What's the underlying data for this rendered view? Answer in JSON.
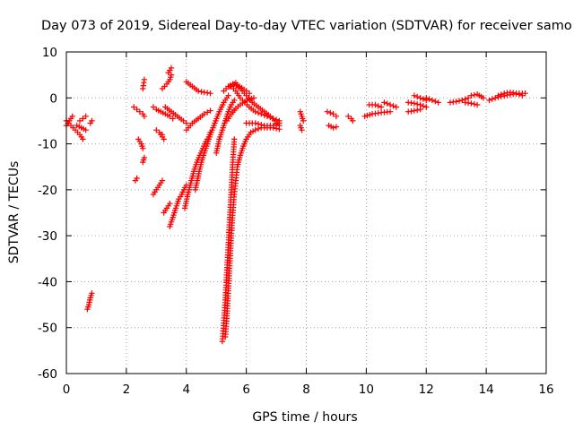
{
  "chart_data": {
    "type": "scatter",
    "title": "Day 073 of 2019, Sidereal Day-to-day VTEC variation (SDTVAR) for receiver samo",
    "xlabel": "GPS time / hours",
    "ylabel": "SDTVAR / TECUs",
    "xlim": [
      0,
      16
    ],
    "ylim": [
      -60,
      10
    ],
    "xticks": [
      "0",
      "2",
      "4",
      "6",
      "8",
      "10",
      "12",
      "14",
      "16"
    ],
    "yticks": [
      "10",
      "0",
      "-10",
      "-20",
      "-30",
      "-40",
      "-50",
      "-60"
    ],
    "grid": true,
    "marker": "+",
    "color": "#ff0000",
    "segments": [
      {
        "x": [
          0.0,
          0.15,
          0.3,
          0.45,
          0.55
        ],
        "y": [
          -5,
          -6,
          -7,
          -8,
          -9
        ]
      },
      {
        "x": [
          0.0,
          0.1,
          0.2
        ],
        "y": [
          -6,
          -5,
          -4
        ]
      },
      {
        "x": [
          0.35,
          0.5,
          0.65
        ],
        "y": [
          -6,
          -6.5,
          -7
        ]
      },
      {
        "x": [
          0.45,
          0.55,
          0.65
        ],
        "y": [
          -5,
          -4.5,
          -4
        ]
      },
      {
        "x": [
          0.8,
          0.85
        ],
        "y": [
          -5.5,
          -5
        ]
      },
      {
        "x": [
          0.7,
          0.75,
          0.8,
          0.85
        ],
        "y": [
          -46,
          -45,
          -43.5,
          -42.5
        ]
      },
      {
        "x": [
          2.25,
          2.35
        ],
        "y": [
          -2,
          -2.5
        ]
      },
      {
        "x": [
          2.45,
          2.55,
          2.6
        ],
        "y": [
          -3,
          -3.5,
          -4
        ]
      },
      {
        "x": [
          2.55,
          2.6
        ],
        "y": [
          2,
          4
        ]
      },
      {
        "x": [
          2.4,
          2.5,
          2.55
        ],
        "y": [
          -9,
          -10,
          -11
        ]
      },
      {
        "x": [
          2.55,
          2.6
        ],
        "y": [
          -14,
          -13
        ]
      },
      {
        "x": [
          2.3,
          2.35
        ],
        "y": [
          -18,
          -17.5
        ]
      },
      {
        "x": [
          3.2,
          3.35,
          3.45,
          3.5
        ],
        "y": [
          2,
          3,
          4,
          5
        ]
      },
      {
        "x": [
          3.4,
          3.45,
          3.5
        ],
        "y": [
          5.5,
          6,
          6.5
        ]
      },
      {
        "x": [
          2.9,
          3.0,
          3.15,
          3.3,
          3.45,
          3.55
        ],
        "y": [
          -2,
          -2.5,
          -3,
          -3.5,
          -4,
          -4.5
        ]
      },
      {
        "x": [
          3.3,
          3.5,
          3.7,
          3.9,
          4.0
        ],
        "y": [
          -2,
          -3,
          -4,
          -5,
          -5.5
        ]
      },
      {
        "x": [
          3.15,
          3.25
        ],
        "y": [
          -8,
          -9
        ]
      },
      {
        "x": [
          3.0,
          3.1,
          3.2
        ],
        "y": [
          -7,
          -7.5,
          -8
        ]
      },
      {
        "x": [
          2.9,
          3.0,
          3.1,
          3.2
        ],
        "y": [
          -21,
          -20,
          -19,
          -18
        ]
      },
      {
        "x": [
          3.25,
          3.35,
          3.45
        ],
        "y": [
          -25,
          -24,
          -23
        ]
      },
      {
        "x": [
          3.45,
          3.55,
          3.65,
          3.75,
          3.85,
          3.95,
          4.0
        ],
        "y": [
          -28,
          -26,
          -24,
          -22,
          -21,
          -19.5,
          -19
        ]
      },
      {
        "x": [
          4.0,
          4.2,
          4.4,
          4.6,
          4.8
        ],
        "y": [
          3.5,
          2.5,
          1.5,
          1.2,
          1.0
        ]
      },
      {
        "x": [
          4.0,
          4.2,
          4.4,
          4.6,
          4.8
        ],
        "y": [
          -7,
          -5.5,
          -4.5,
          -3.5,
          -2.8
        ]
      },
      {
        "x": [
          3.95,
          4.05,
          4.15,
          4.25,
          4.35,
          4.45,
          4.55,
          4.65,
          4.75,
          4.8
        ],
        "y": [
          -24,
          -21,
          -18.5,
          -16,
          -14,
          -12.5,
          -11,
          -9.5,
          -8.5,
          -7.5
        ]
      },
      {
        "x": [
          4.3,
          4.4,
          4.5,
          4.65,
          4.8,
          4.95,
          5.1,
          5.25,
          5.4
        ],
        "y": [
          -20,
          -17,
          -14,
          -11,
          -8,
          -5.5,
          -3,
          -1,
          0.5
        ]
      },
      {
        "x": [
          5.25,
          5.4,
          5.55,
          5.7,
          5.85,
          6.0,
          6.1
        ],
        "y": [
          1.5,
          2.5,
          3,
          2.8,
          2.2,
          1.5,
          1.0
        ]
      },
      {
        "x": [
          5.45,
          5.55,
          5.65
        ],
        "y": [
          2.5,
          3,
          3.3
        ]
      },
      {
        "x": [
          5.6,
          5.8,
          6.0,
          6.2,
          6.4,
          6.6,
          6.8,
          6.95,
          7.05,
          7.1
        ],
        "y": [
          3,
          2,
          0.5,
          -1,
          -2,
          -3,
          -4,
          -5,
          -5.5,
          -6
        ]
      },
      {
        "x": [
          5.5,
          5.65,
          5.8,
          5.95,
          6.1,
          6.3,
          6.5,
          6.7,
          6.9,
          7.1
        ],
        "y": [
          2.5,
          1.5,
          0,
          -1,
          -2,
          -3,
          -3.5,
          -4,
          -4.5,
          -5
        ]
      },
      {
        "x": [
          5.0,
          5.1,
          5.2,
          5.3,
          5.4,
          5.5,
          5.6
        ],
        "y": [
          -12,
          -9,
          -7,
          -5,
          -3,
          -1.5,
          -0.5
        ]
      },
      {
        "x": [
          5.35,
          5.5,
          5.65,
          5.8,
          5.95,
          6.1,
          6.25
        ],
        "y": [
          -5,
          -3.5,
          -2.3,
          -1.5,
          -0.8,
          -0.3,
          0
        ]
      },
      {
        "x": [
          5.3,
          5.35,
          5.4,
          5.45,
          5.5,
          5.55,
          5.6,
          5.65,
          5.7,
          5.8,
          5.9,
          6.0,
          6.15,
          6.3,
          6.5,
          6.7,
          6.9,
          7.1
        ],
        "y": [
          -52,
          -48,
          -42,
          -36,
          -30,
          -25,
          -21,
          -18,
          -15,
          -12.5,
          -10.5,
          -9,
          -7.5,
          -7,
          -6.5,
          -6.5,
          -6.5,
          -6.8
        ]
      },
      {
        "x": [
          5.2,
          5.25,
          5.3,
          5.35,
          5.4,
          5.45,
          5.5,
          5.55,
          5.6
        ],
        "y": [
          -53,
          -49,
          -44,
          -38,
          -32,
          -26,
          -20,
          -14,
          -9
        ]
      },
      {
        "x": [
          6.0,
          6.3,
          6.6,
          6.9,
          7.1
        ],
        "y": [
          -5.5,
          -5.5,
          -6,
          -6,
          -5.5
        ]
      },
      {
        "x": [
          7.8,
          7.85,
          7.9
        ],
        "y": [
          -3,
          -4,
          -5
        ]
      },
      {
        "x": [
          7.8,
          7.85
        ],
        "y": [
          -6,
          -7
        ]
      },
      {
        "x": [
          8.7,
          8.9,
          9.0
        ],
        "y": [
          -3,
          -3.5,
          -4
        ]
      },
      {
        "x": [
          8.75,
          8.9,
          9.0
        ],
        "y": [
          -6,
          -6.5,
          -6.3
        ]
      },
      {
        "x": [
          9.4,
          9.5,
          9.55
        ],
        "y": [
          -4,
          -4.5,
          -5
        ]
      },
      {
        "x": [
          9.95,
          10.2,
          10.5,
          10.8
        ],
        "y": [
          -4,
          -3.5,
          -3.2,
          -3
        ]
      },
      {
        "x": [
          10.1,
          10.3,
          10.5
        ],
        "y": [
          -1.5,
          -1.5,
          -2
        ]
      },
      {
        "x": [
          10.6,
          10.8,
          11.0
        ],
        "y": [
          -1,
          -1.5,
          -2
        ]
      },
      {
        "x": [
          11.4,
          11.6,
          11.8,
          12.0
        ],
        "y": [
          -1,
          -1.2,
          -1.5,
          -2
        ]
      },
      {
        "x": [
          11.4,
          11.6,
          11.8
        ],
        "y": [
          -3,
          -2.8,
          -2.5
        ]
      },
      {
        "x": [
          11.6,
          11.8,
          12.0
        ],
        "y": [
          0.5,
          0,
          -0.5
        ]
      },
      {
        "x": [
          12.0,
          12.2,
          12.4
        ],
        "y": [
          0,
          -0.5,
          -1
        ]
      },
      {
        "x": [
          12.8,
          13.0,
          13.2,
          13.4
        ],
        "y": [
          -1,
          -0.8,
          -0.5,
          0
        ]
      },
      {
        "x": [
          13.5,
          13.7,
          13.9
        ],
        "y": [
          0.5,
          0.8,
          0
        ]
      },
      {
        "x": [
          13.3,
          13.5,
          13.7
        ],
        "y": [
          -1,
          -1.2,
          -1.5
        ]
      },
      {
        "x": [
          14.1,
          14.3,
          14.5,
          14.7,
          14.9,
          15.1,
          15.3
        ],
        "y": [
          -0.5,
          0,
          0.3,
          0.6,
          0.8,
          1.0,
          1.0
        ]
      },
      {
        "x": [
          14.4,
          14.6,
          14.8,
          15.0,
          15.2
        ],
        "y": [
          0.5,
          1.0,
          1.2,
          1.0,
          0.5
        ]
      }
    ]
  }
}
